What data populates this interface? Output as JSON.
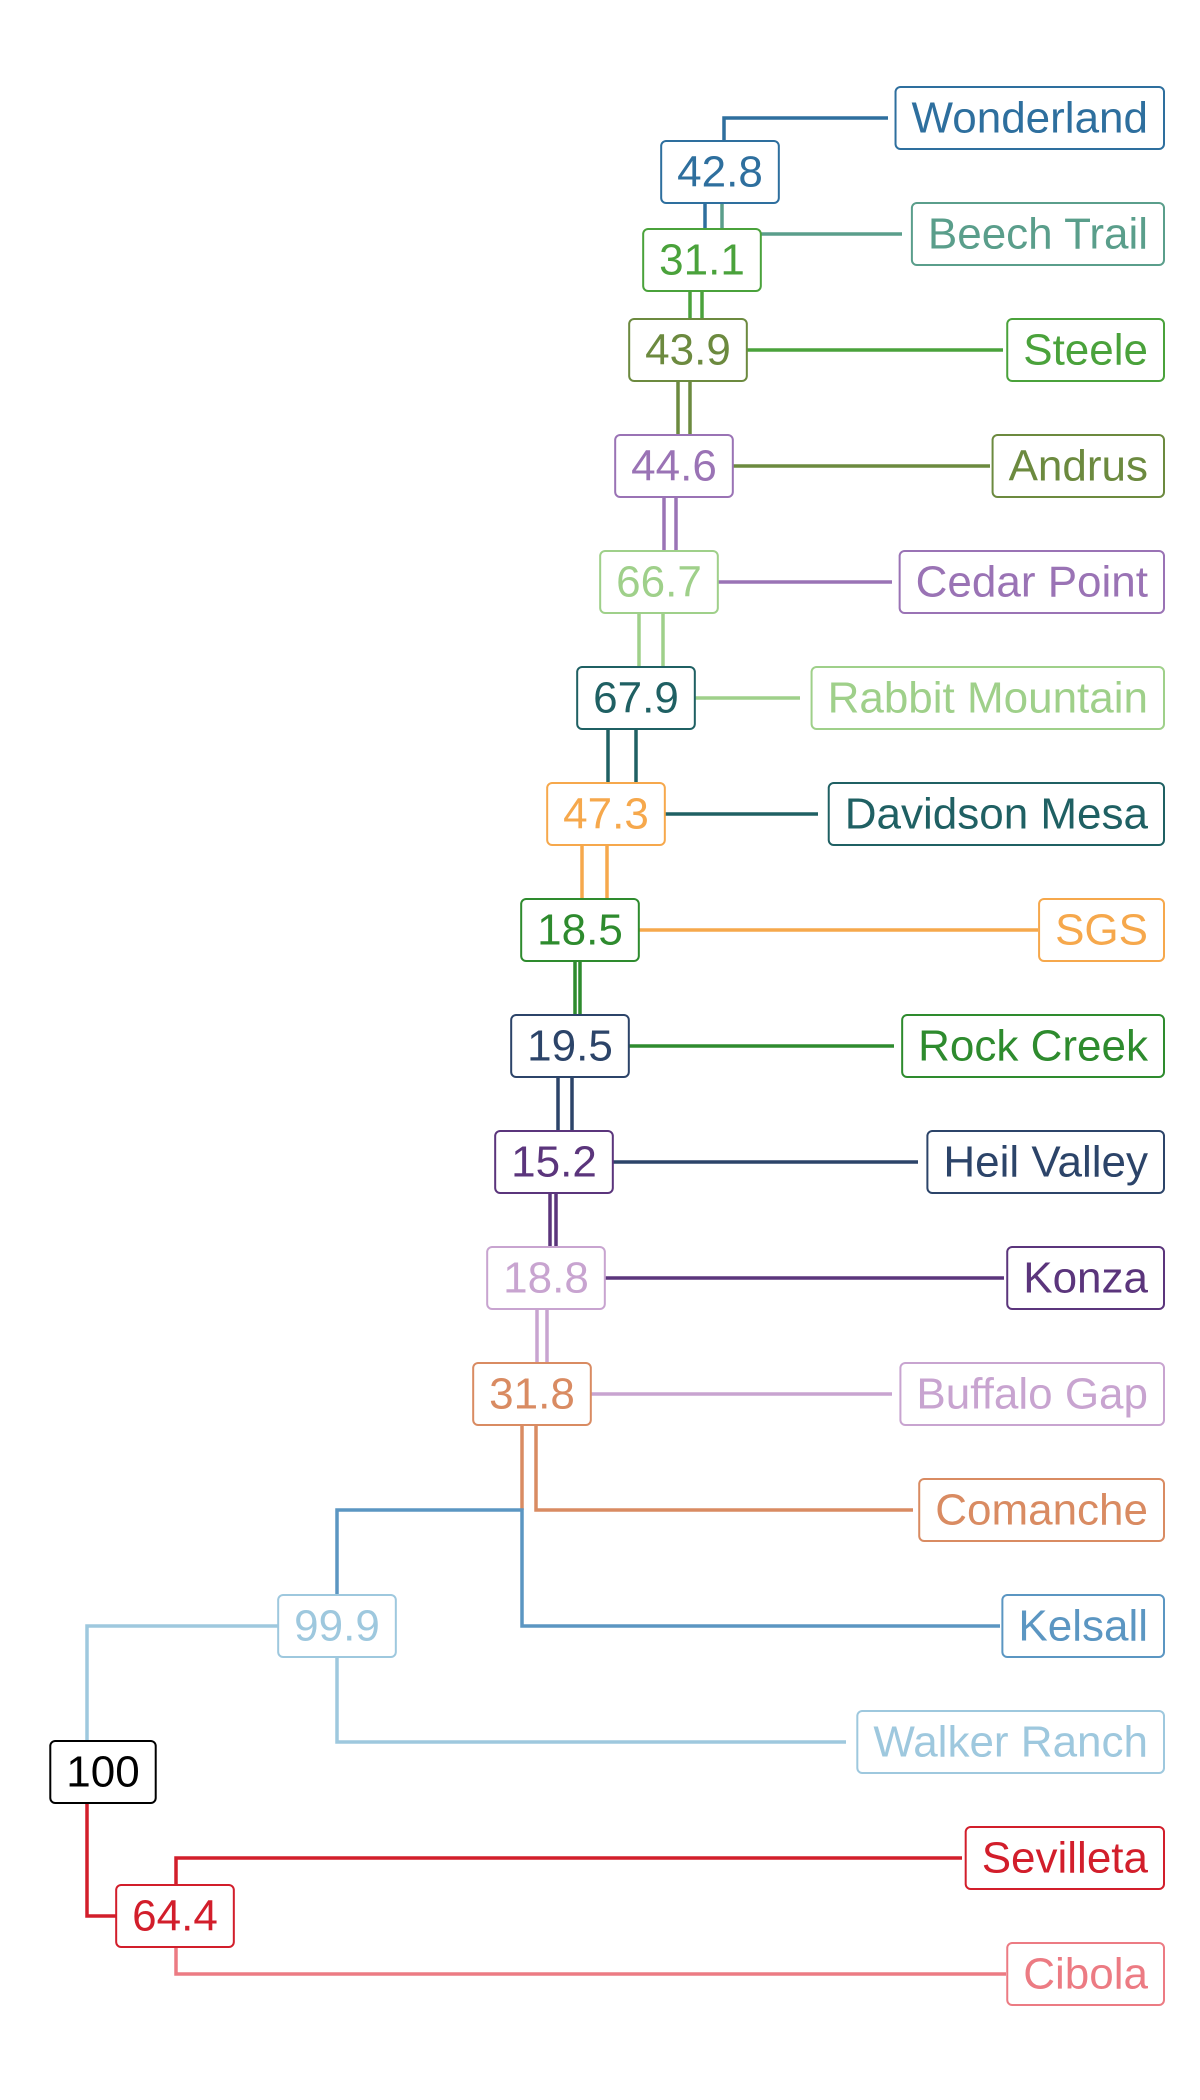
{
  "tree": {
    "leaves": [
      {
        "id": "wonderland",
        "label": "Wonderland",
        "color": "#2e6f9e"
      },
      {
        "id": "beech-trail",
        "label": "Beech Trail",
        "color": "#5a9e8b"
      },
      {
        "id": "steele",
        "label": "Steele",
        "color": "#4aa23b"
      },
      {
        "id": "andrus",
        "label": "Andrus",
        "color": "#6c8a3f"
      },
      {
        "id": "cedar-point",
        "label": "Cedar Point",
        "color": "#9a73b5"
      },
      {
        "id": "rabbit-mountain",
        "label": "Rabbit Mountain",
        "color": "#9fd08a"
      },
      {
        "id": "davidson-mesa",
        "label": "Davidson Mesa",
        "color": "#1f6063"
      },
      {
        "id": "sgs",
        "label": "SGS",
        "color": "#f6a84c"
      },
      {
        "id": "rock-creek",
        "label": "Rock Creek",
        "color": "#2e8b2e"
      },
      {
        "id": "heil-valley",
        "label": "Heil Valley",
        "color": "#2c4469"
      },
      {
        "id": "konza",
        "label": "Konza",
        "color": "#5b357c"
      },
      {
        "id": "buffalo-gap",
        "label": "Buffalo Gap",
        "color": "#c8a4d0"
      },
      {
        "id": "comanche",
        "label": "Comanche",
        "color": "#d98b62"
      },
      {
        "id": "kelsall",
        "label": "Kelsall",
        "color": "#5b96c2"
      },
      {
        "id": "walker-ranch",
        "label": "Walker Ranch",
        "color": "#9ec8de"
      },
      {
        "id": "sevilleta",
        "label": "Sevilleta",
        "color": "#d21e2b"
      },
      {
        "id": "cibola",
        "label": "Cibola",
        "color": "#ec7b83"
      }
    ],
    "nodes": [
      {
        "id": "n-root",
        "value": "100",
        "color": "#000000"
      },
      {
        "id": "n-64-4",
        "value": "64.4",
        "color": "#d21e2b"
      },
      {
        "id": "n-99-9",
        "value": "99.9",
        "color": "#9ec8de"
      },
      {
        "id": "n-31-8",
        "value": "31.8",
        "color": "#d98b62"
      },
      {
        "id": "n-18-8",
        "value": "18.8",
        "color": "#c8a4d0"
      },
      {
        "id": "n-15-2",
        "value": "15.2",
        "color": "#5b357c"
      },
      {
        "id": "n-19-5",
        "value": "19.5",
        "color": "#2c4469"
      },
      {
        "id": "n-18-5",
        "value": "18.5",
        "color": "#2e8b2e"
      },
      {
        "id": "n-47-3",
        "value": "47.3",
        "color": "#f6a84c"
      },
      {
        "id": "n-67-9",
        "value": "67.9",
        "color": "#1f6063"
      },
      {
        "id": "n-66-7",
        "value": "66.7",
        "color": "#9fd08a"
      },
      {
        "id": "n-44-6",
        "value": "44.6",
        "color": "#9a73b5"
      },
      {
        "id": "n-43-9",
        "value": "43.9",
        "color": "#6c8a3f"
      },
      {
        "id": "n-31-1",
        "value": "31.1",
        "color": "#4aa23b"
      },
      {
        "id": "n-42-8",
        "value": "42.8",
        "color": "#2e6f9e"
      }
    ]
  }
}
